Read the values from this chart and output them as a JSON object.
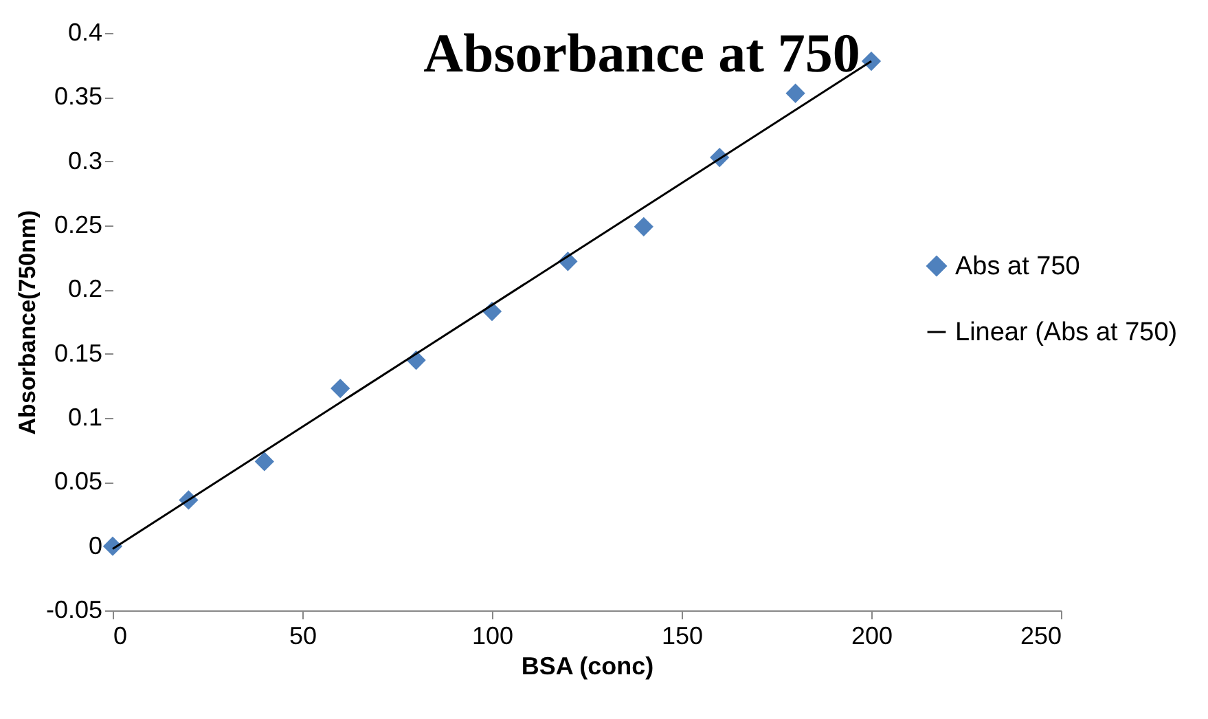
{
  "chart_data": {
    "type": "scatter",
    "title": "Absorbance at 750",
    "xlabel": "BSA (conc)",
    "ylabel": "Absorbance(750nm)",
    "x": [
      0,
      20,
      40,
      60,
      80,
      100,
      120,
      140,
      160,
      180,
      200
    ],
    "series": [
      {
        "name": "Abs at 750",
        "color": "#4f81bd",
        "marker": "diamond",
        "values": [
          0,
          0.036,
          0.066,
          0.123,
          0.145,
          0.183,
          0.222,
          0.249,
          0.303,
          0.353,
          0.378
        ]
      },
      {
        "name": "Linear (Abs at 750)",
        "type": "line",
        "color": "#000000",
        "x": [
          0,
          200
        ],
        "values": [
          -0.002,
          0.378
        ]
      }
    ],
    "grid": false,
    "legend": "right",
    "xlim": [
      0,
      250
    ],
    "xticks": [
      0,
      50,
      100,
      150,
      200,
      250
    ],
    "ylim": [
      -0.05,
      0.4
    ],
    "yticks": [
      -0.05,
      0,
      0.05,
      0.1,
      0.15,
      0.2,
      0.25,
      0.3,
      0.35,
      0.4
    ]
  }
}
